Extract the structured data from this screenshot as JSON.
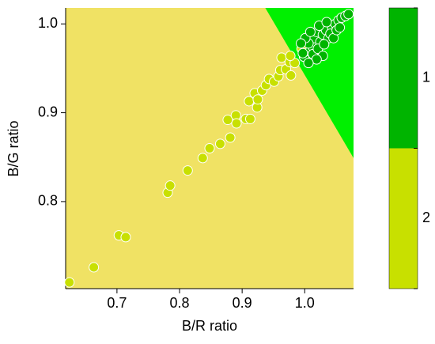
{
  "chart_data": {
    "type": "scatter",
    "xlabel": "B/R ratio",
    "ylabel": "B/G ratio",
    "xlim": [
      0.618,
      1.078
    ],
    "ylim": [
      0.702,
      1.018
    ],
    "xticks": [
      0.7,
      0.8,
      0.9,
      {
        "value": 1,
        "label": "1.0"
      }
    ],
    "yticks": [
      0.8,
      0.9,
      {
        "value": 1,
        "label": "1.0"
      }
    ],
    "decision_boundary": {
      "x": [
        0.937,
        1.078
      ],
      "y": [
        1.018,
        0.849
      ]
    },
    "series": [
      {
        "name": "1",
        "color": "#00b400",
        "region_color": "#00f000",
        "x": [
          0.999,
          1.008,
          1.012,
          1.016,
          1.019,
          1.025,
          1.029,
          1.034,
          1.038,
          1.044,
          1.049,
          1.054,
          1.059,
          1.065,
          1.07,
          1.006,
          1.013,
          1.021,
          1.031,
          1.041,
          1.046,
          1.001,
          0.994,
          1.009,
          1.023,
          1.035,
          1.051,
          1.056,
          1.029,
          1.019,
          1.006,
          0.997
        ],
        "y": [
          0.963,
          0.969,
          0.975,
          0.984,
          0.991,
          0.98,
          0.988,
          0.993,
          0.984,
          0.995,
          1.0,
          1.004,
          1.007,
          1.009,
          1.011,
          0.978,
          0.966,
          0.972,
          0.977,
          0.989,
          0.984,
          0.984,
          0.978,
          0.991,
          0.998,
          1.002,
          0.993,
          0.996,
          0.964,
          0.96,
          0.956,
          0.967
        ]
      },
      {
        "name": "2",
        "color": "#c8e000",
        "region_color": "#f0e264",
        "x": [
          0.624,
          0.663,
          0.703,
          0.714,
          0.781,
          0.785,
          0.813,
          0.837,
          0.848,
          0.865,
          0.881,
          0.877,
          0.89,
          0.891,
          0.906,
          0.913,
          0.911,
          0.92,
          0.924,
          0.925,
          0.932,
          0.938,
          0.943,
          0.951,
          0.958,
          0.961,
          0.97,
          0.963,
          0.976,
          0.984,
          0.977,
          0.999,
          0.995,
          1.004,
          0.978
        ],
        "y": [
          0.709,
          0.726,
          0.762,
          0.76,
          0.81,
          0.818,
          0.835,
          0.849,
          0.86,
          0.865,
          0.872,
          0.892,
          0.897,
          0.888,
          0.893,
          0.893,
          0.913,
          0.922,
          0.906,
          0.915,
          0.925,
          0.931,
          0.938,
          0.935,
          0.941,
          0.948,
          0.949,
          0.962,
          0.957,
          0.956,
          0.964,
          0.963,
          0.972,
          0.98,
          0.942
        ]
      }
    ]
  }
}
